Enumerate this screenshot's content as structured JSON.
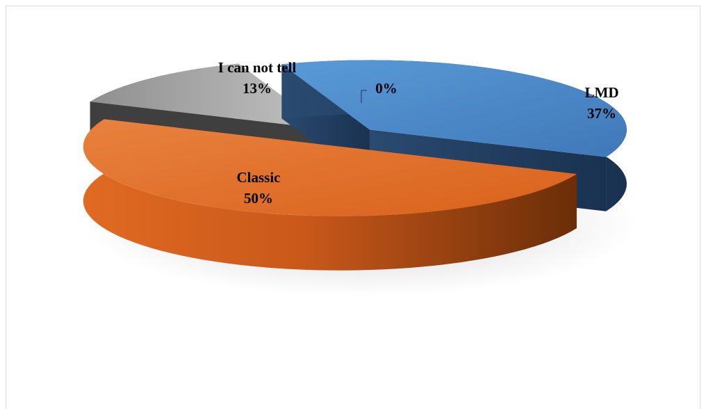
{
  "chart_data": {
    "type": "pie",
    "style": "3d-exploded",
    "title": "",
    "slices": [
      {
        "category": "LMD",
        "value": 37,
        "label": "37%",
        "color": "#4a86c8",
        "side_color": "#1f3a5a"
      },
      {
        "category": "Classic",
        "value": 50,
        "label": "50%",
        "color": "#e56f25",
        "side_color": "#8a3d0c"
      },
      {
        "category": "I can not tell",
        "value": 13,
        "label": "13%",
        "color": "#a6a6a6",
        "side_color": "#3f3f3f"
      },
      {
        "category": "",
        "value": 0,
        "label": "0%",
        "color": "#ffffff",
        "side_color": "#ffffff"
      }
    ],
    "legend": "none"
  }
}
